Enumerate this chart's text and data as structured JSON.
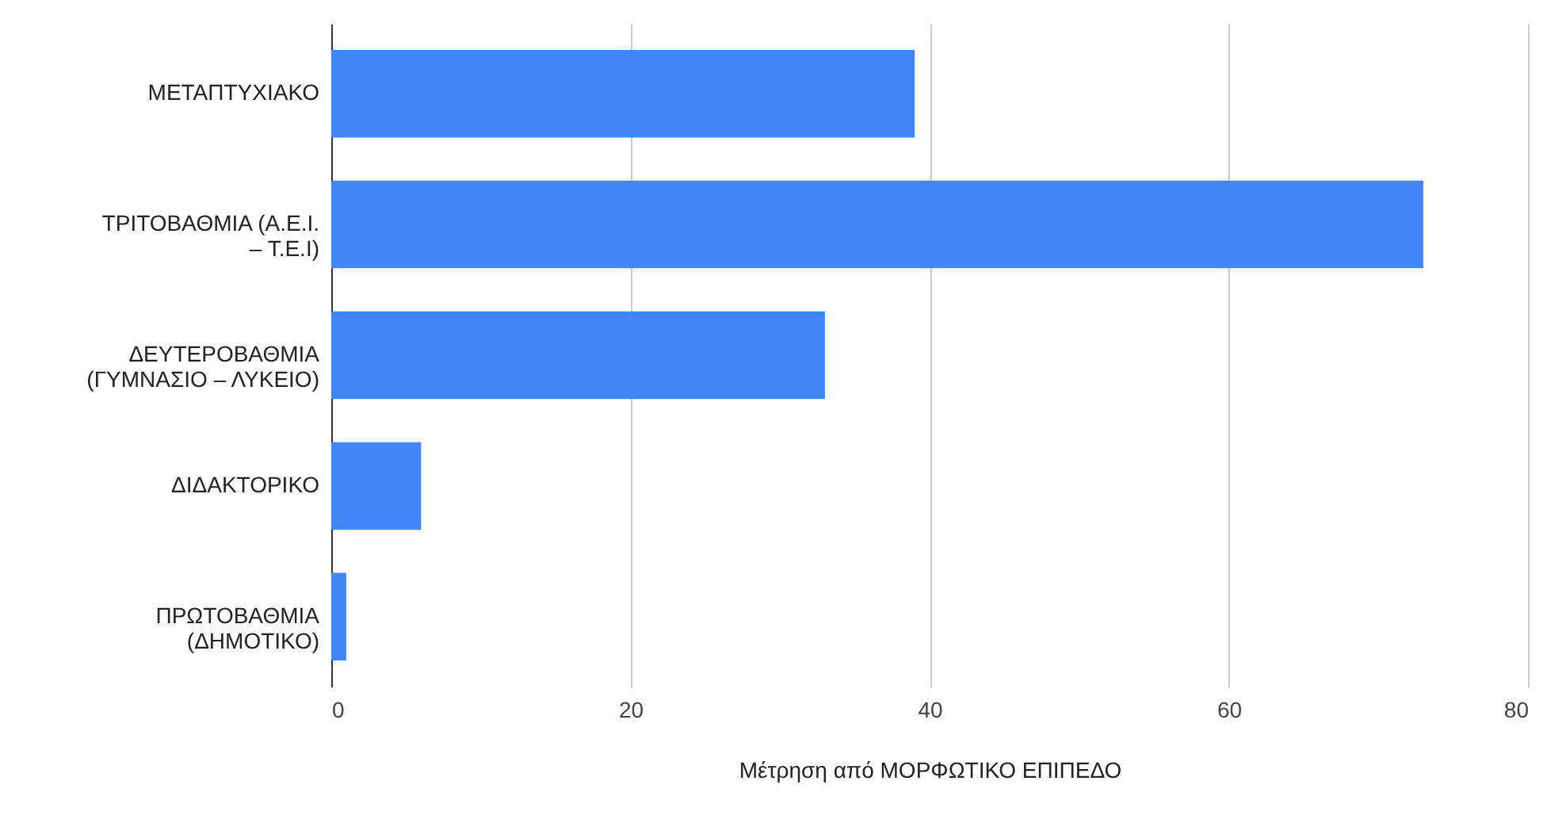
{
  "chart_data": {
    "type": "bar",
    "orientation": "horizontal",
    "categories": [
      "ΜΕΤΑΠΤΥΧΙΑΚΟ",
      "ΤΡΙΤΟΒΑΘΜΙΑ (Α.Ε.Ι. – Τ.Ε.Ι)",
      "ΔΕΥΤΕΡΟΒΑΘΜΙΑ (ΓΥΜΝΑΣΙΟ – ΛΥΚΕΙΟ)",
      "ΔΙΔΑΚΤΟΡΙΚΟ",
      "ΠΡΩΤΟΒΑΘΜΙΑ (ΔΗΜΟΤΙΚΟ)"
    ],
    "values": [
      39,
      73,
      33,
      6,
      1
    ],
    "color": "#4285f4",
    "xlabel": "Μέτρηση από ΜΟΡΦΩΤΙΚΟ ΕΠΙΠΕΔΟ",
    "xlim": [
      0,
      80
    ],
    "xticks": [
      0,
      20,
      40,
      60,
      80
    ],
    "grid": "x"
  }
}
